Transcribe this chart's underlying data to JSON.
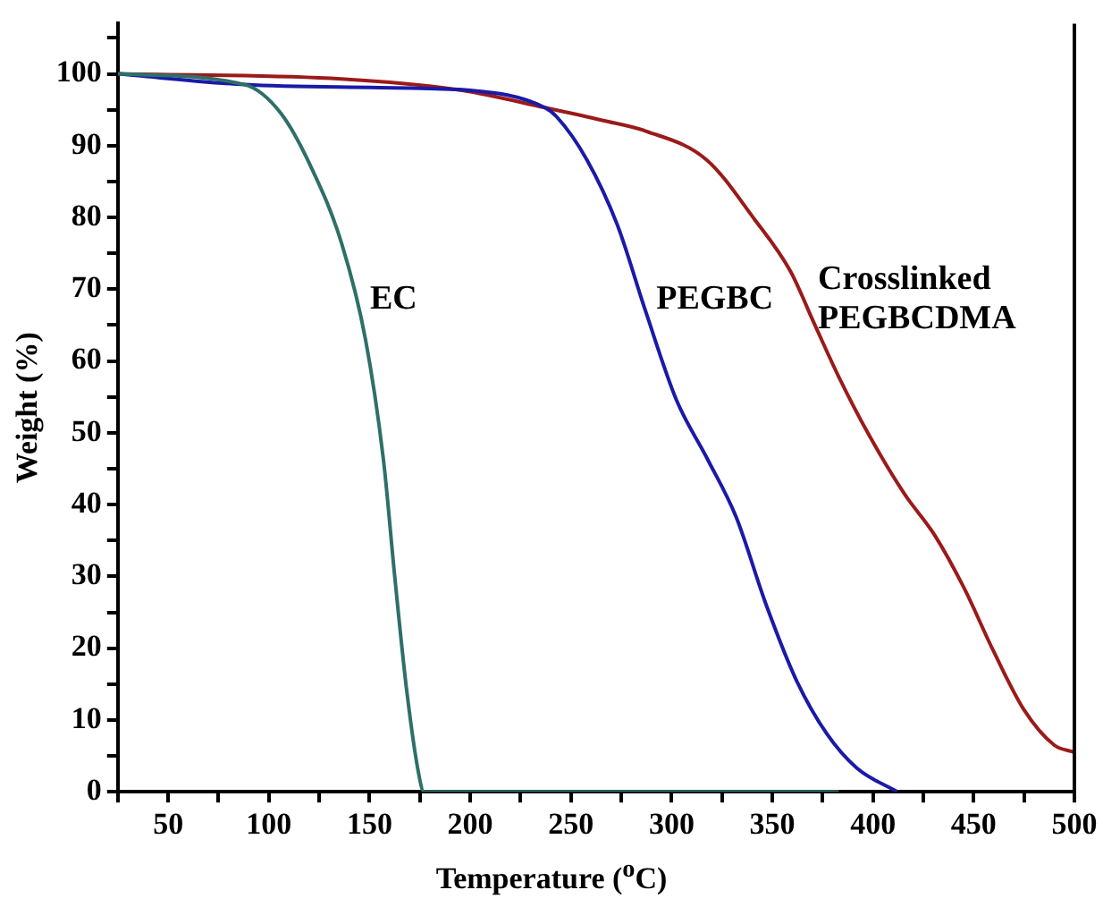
{
  "chart_data": {
    "type": "line",
    "xlabel": "Temperature ($^{o}$C)",
    "ylabel": "Weight (%)",
    "xlim": [
      25,
      500
    ],
    "ylim": [
      0,
      107
    ],
    "xticks": [
      {
        "value": 25,
        "label": null
      },
      50,
      {
        "value": 75,
        "label": null
      },
      100,
      {
        "value": 125,
        "label": null
      },
      150,
      {
        "value": 175,
        "label": null
      },
      200,
      {
        "value": 225,
        "label": null
      },
      250,
      {
        "value": 275,
        "label": null
      },
      300,
      {
        "value": 325,
        "label": null
      },
      350,
      {
        "value": 375,
        "label": null
      },
      400,
      {
        "value": 425,
        "label": null
      },
      450,
      {
        "value": 475,
        "label": null
      },
      500
    ],
    "yticks": [
      0,
      {
        "value": 5,
        "label": null
      },
      10,
      {
        "value": 15,
        "label": null
      },
      20,
      {
        "value": 25,
        "label": null
      },
      30,
      {
        "value": 35,
        "label": null
      },
      40,
      {
        "value": 45,
        "label": null
      },
      50,
      {
        "value": 55,
        "label": null
      },
      60,
      {
        "value": 65,
        "label": null
      },
      70,
      {
        "value": 75,
        "label": null
      },
      80,
      {
        "value": 85,
        "label": null
      },
      90,
      {
        "value": 95,
        "label": null
      },
      100,
      {
        "value": 105,
        "label": null
      }
    ],
    "grid": false,
    "legend": false,
    "marker": "none",
    "line_style": "solid",
    "series": [
      {
        "name": "EC",
        "color": "#2e7068",
        "x": [
          25,
          88,
          106,
          121,
          136,
          148,
          157,
          162.5,
          168.5,
          174.4,
          177,
          383
        ],
        "values": [
          100,
          98.5,
          94.5,
          87,
          76.5,
          63,
          46,
          30,
          14,
          2.5,
          0,
          0
        ]
      },
      {
        "name": "PEGBC",
        "color": "#1a1aa8",
        "x": [
          25,
          88,
          150,
          200,
          237,
          243,
          258,
          273,
          287,
          302.5,
          317.5,
          332,
          347,
          362,
          377,
          392,
          412
        ],
        "values": [
          100,
          98.5,
          98.1,
          97.7,
          95.3,
          94,
          88,
          79,
          67,
          54.5,
          46.5,
          38.3,
          26,
          15.5,
          8.1,
          3.3,
          0
        ]
      },
      {
        "name": "Crosslinked PEGBCDMA",
        "color": "#9b1a1a",
        "x": [
          25,
          136,
          196,
          237,
          266,
          287.5,
          317.5,
          341,
          359,
          371,
          383,
          398,
          415.6,
          430.5,
          445,
          460,
          475,
          490,
          500
        ],
        "values": [
          100,
          99.3,
          97.7,
          95.3,
          93.5,
          92,
          88,
          79.8,
          72.5,
          65.1,
          57.8,
          49.7,
          41.5,
          35.8,
          28.5,
          19.5,
          11.4,
          6.5,
          5.5
        ]
      }
    ]
  }
}
